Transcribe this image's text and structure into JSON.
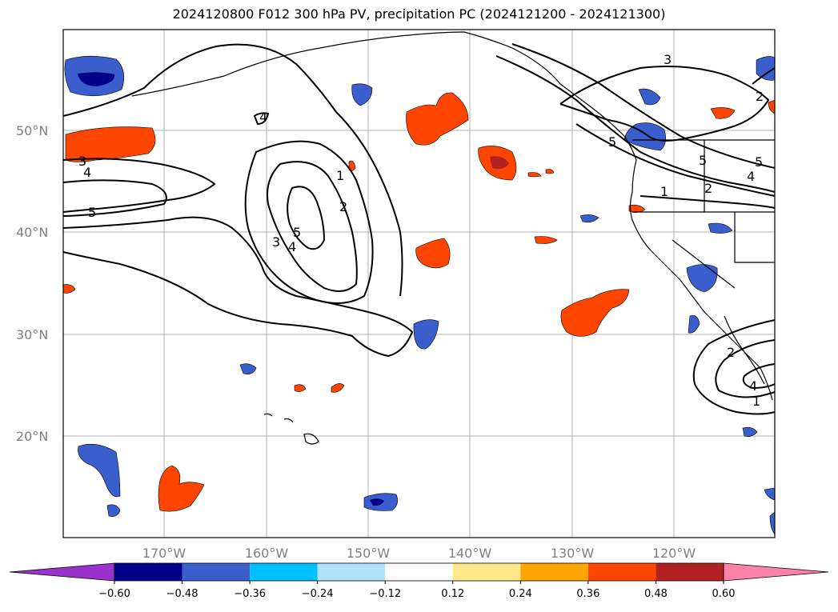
{
  "title": "2024120800 F012 300 hPa PV, precipitation PC (2024121200 - 2024121300)",
  "axes": {
    "lat_labels": [
      "50°N",
      "40°N",
      "30°N",
      "20°N"
    ],
    "lon_labels": [
      "170°W",
      "160°W",
      "150°W",
      "140°W",
      "130°W",
      "120°W"
    ]
  },
  "contour_labels": [
    "1",
    "2",
    "3",
    "4",
    "5"
  ],
  "colorbar": {
    "ticks": [
      "−0.60",
      "−0.48",
      "−0.36",
      "−0.24",
      "−0.12",
      "0.12",
      "0.24",
      "0.36",
      "0.48",
      "0.60"
    ],
    "colors": [
      "#9932cc",
      "#00008b",
      "#3a5fcd",
      "#00bfff",
      "#afe1fa",
      "#ffffff",
      "#ffe88a",
      "#ffa500",
      "#ff4500",
      "#b22222",
      "#ff82ab"
    ]
  },
  "colors": {
    "neg_dark": "#00008b",
    "neg_mid": "#3a5fcd",
    "neg_light": "#00bfff",
    "neg_pale": "#afe1fa",
    "pos_pale": "#ffe88a",
    "pos_light": "#ffa500",
    "pos_mid": "#ff4500",
    "pos_dark": "#b22222",
    "grid": "#b0b0b0",
    "axis_text": "#808080"
  }
}
